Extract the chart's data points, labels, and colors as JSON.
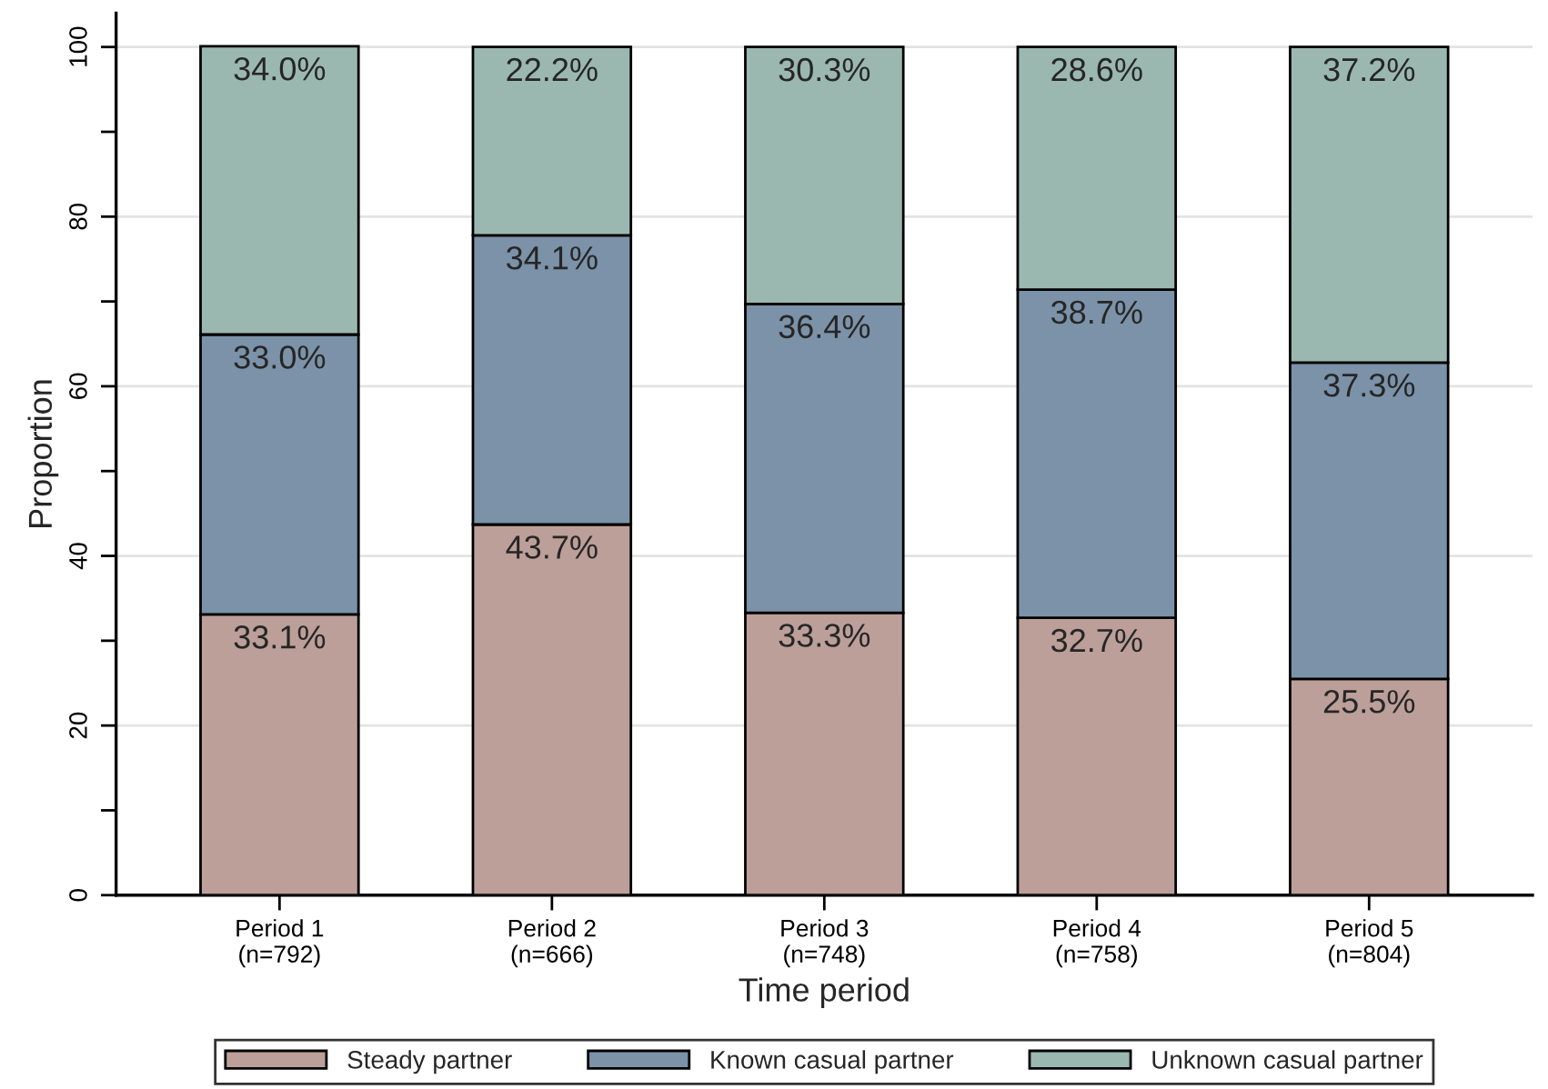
{
  "chart_data": {
    "type": "bar",
    "stacked": true,
    "xlabel": "Time period",
    "ylabel": "Proportion",
    "categories": [
      "Period 1\n(n=792)",
      "Period 2\n(n=666)",
      "Period 3\n(n=748)",
      "Period 4\n(n=758)",
      "Period 5\n(n=804)"
    ],
    "series": [
      {
        "name": "Steady partner",
        "color": "#bc9f99",
        "values": [
          33.1,
          43.7,
          33.3,
          32.7,
          25.5
        ],
        "value_labels": [
          "33.1%",
          "43.7%",
          "33.3%",
          "32.7%",
          "25.5%"
        ]
      },
      {
        "name": "Known casual partner",
        "color": "#7b92a8",
        "values": [
          33.0,
          34.1,
          36.4,
          38.7,
          37.3
        ],
        "value_labels": [
          "33.0%",
          "34.1%",
          "36.4%",
          "38.7%",
          "37.3%"
        ]
      },
      {
        "name": "Unknown casual partner",
        "color": "#9bb8b0",
        "values": [
          34.0,
          22.2,
          30.3,
          28.6,
          37.2
        ],
        "value_labels": [
          "34.0%",
          "22.2%",
          "30.3%",
          "28.6%",
          "37.2%"
        ]
      }
    ],
    "ylim": [
      0,
      104
    ],
    "yticks": [
      0,
      {
        "value": 10,
        "label": null
      },
      20,
      {
        "value": 30,
        "label": null
      },
      40,
      {
        "value": 50,
        "label": null
      },
      60,
      {
        "value": 70,
        "label": null
      },
      80,
      {
        "value": 90,
        "label": null
      },
      100
    ],
    "grid": "y",
    "legend": "bottom"
  }
}
